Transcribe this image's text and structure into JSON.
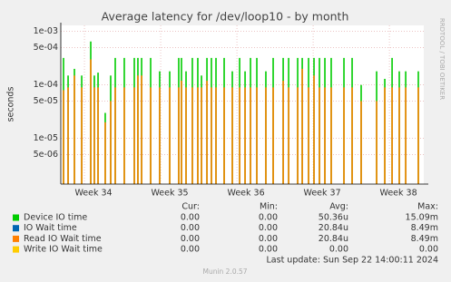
{
  "chart_data": {
    "type": "spike",
    "title": "Average latency for /dev/loop10 - by month",
    "y_label": "seconds",
    "side_text": "RRDTOOL / TOBI OETIKER",
    "log_y": true,
    "grid": true,
    "xlim": [
      0,
      33.33
    ],
    "xticks": [
      {
        "value": 2.17,
        "label": "Week 34"
      },
      {
        "value": 9.17,
        "label": "Week 35"
      },
      {
        "value": 16.17,
        "label": "Week 36"
      },
      {
        "value": 23.17,
        "label": "Week 37"
      },
      {
        "value": 30.17,
        "label": "Week 38"
      }
    ],
    "ylim": [
      1.4e-06,
      0.0013
    ],
    "yticks": [
      {
        "value": 0.001,
        "label": "1e-03"
      },
      {
        "value": 0.0005,
        "label": "5e-04"
      },
      {
        "value": 0.0001,
        "label": "1e-04"
      },
      {
        "value": 5e-05,
        "label": "5e-05"
      },
      {
        "value": 1e-05,
        "label": "1e-05"
      },
      {
        "value": 5e-06,
        "label": "5e-06"
      }
    ],
    "x": [
      0.25,
      0.67,
      1.25,
      1.92,
      2.75,
      3.08,
      3.42,
      4.08,
      4.58,
      5,
      5.83,
      6.75,
      7.08,
      7.42,
      8.25,
      9.08,
      10,
      10.83,
      11.08,
      11.5,
      12.08,
      12.58,
      12.92,
      13.42,
      13.83,
      14.25,
      15,
      15.75,
      16.42,
      16.92,
      17.42,
      18,
      18.83,
      19.5,
      20.42,
      20.92,
      21.75,
      22.17,
      22.75,
      23.25,
      23.75,
      24.25,
      24.83,
      26,
      26.75,
      27.58,
      29,
      29.75,
      30.42,
      31.08,
      31.67,
      32.83
    ],
    "series": [
      {
        "name": "Device IO time",
        "color": "#00cc00",
        "values": [
          0.00032,
          0.00015,
          0.0002,
          0.00015,
          0.00065,
          0.00015,
          0.00017,
          3e-05,
          0.00015,
          0.00032,
          0.00032,
          0.00032,
          0.00032,
          0.00032,
          0.00032,
          0.00018,
          0.00018,
          0.00032,
          0.00032,
          0.00018,
          0.00032,
          0.00032,
          0.00015,
          0.00032,
          0.00032,
          0.00032,
          0.00032,
          0.00018,
          0.00032,
          0.00018,
          0.00032,
          0.00032,
          0.00018,
          0.00032,
          0.00032,
          0.00032,
          0.00032,
          0.00032,
          0.00032,
          0.00032,
          0.00032,
          0.00032,
          0.00032,
          0.00032,
          0.00032,
          0.0001,
          0.00018,
          0.00013,
          0.00032,
          0.00018,
          0.00018,
          0.00018
        ]
      },
      {
        "name": "IO Wait time",
        "color": "#0066b3"
      },
      {
        "name": "Read IO Wait time",
        "color": "#ff8000",
        "values": [
          8e-05,
          9e-05,
          0.00015,
          9e-05,
          0.0003,
          9e-05,
          9e-05,
          2e-05,
          5e-05,
          9e-05,
          9e-05,
          9e-05,
          0.00015,
          0.00015,
          9e-05,
          9e-05,
          9e-05,
          9e-05,
          0.00012,
          9e-05,
          9e-05,
          9e-05,
          9e-05,
          0.00012,
          9e-05,
          9e-05,
          9e-05,
          9e-05,
          9e-05,
          9e-05,
          9e-05,
          9e-05,
          9e-05,
          9e-05,
          0.00012,
          9e-05,
          9e-05,
          0.0002,
          9e-05,
          0.00015,
          9e-05,
          9e-05,
          9e-05,
          9e-05,
          9e-05,
          5e-05,
          5e-05,
          9e-05,
          9e-05,
          9e-05,
          9e-05,
          9e-05
        ]
      },
      {
        "name": "Write IO Wait time",
        "color": "#ffcc00"
      }
    ],
    "legend_table": {
      "headers": [
        "Cur:",
        "Min:",
        "Avg:",
        "Max:"
      ],
      "rows": [
        [
          "0.00",
          "0.00",
          "50.36u",
          "15.09m"
        ],
        [
          "0.00",
          "0.00",
          "20.84u",
          "8.49m"
        ],
        [
          "0.00",
          "0.00",
          "20.84u",
          "8.49m"
        ],
        [
          "0.00",
          "0.00",
          "0.00",
          "0.00"
        ]
      ]
    },
    "last_update": "Last update: Sun Sep 22 14:00:11 2024",
    "footer": "Munin 2.0.57"
  }
}
